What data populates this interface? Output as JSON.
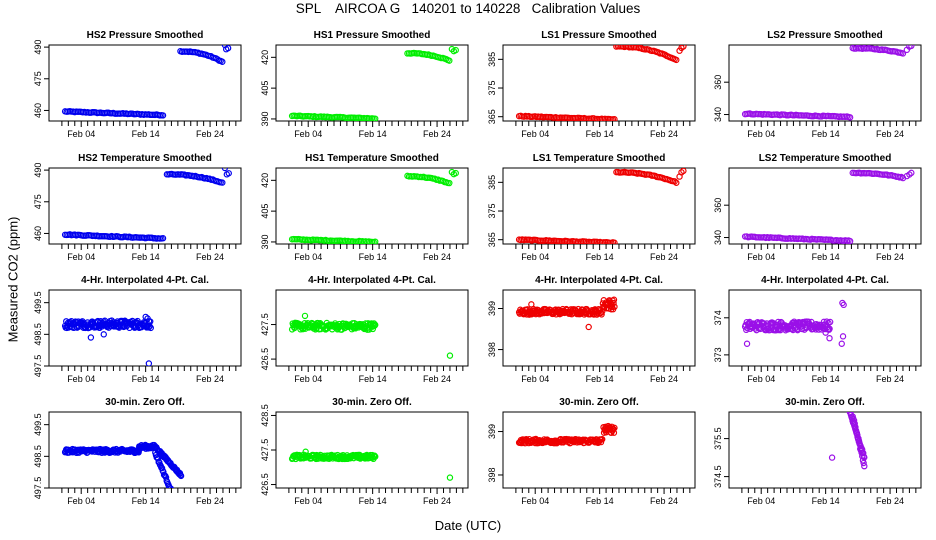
{
  "figure": {
    "title": "SPL    AIRCOA G   140201 to 140228   Calibration Values",
    "ylabel": "Measured CO2 (ppm)",
    "xlabel": "Date (UTC)"
  },
  "chart_data": [
    {
      "type": "scatter",
      "title": "HS2 Pressure Smoothed",
      "color": "#0000ee",
      "xlim": [
        -2,
        27.8
      ],
      "ylim": [
        455,
        491
      ],
      "yticks": [
        460,
        475,
        490
      ],
      "xtick_labels": [
        "Feb 04",
        "Feb 14",
        "Feb 24"
      ],
      "xticks": [
        3,
        13,
        23
      ],
      "segments": [
        {
          "x0": 0.5,
          "x1": 15.7,
          "y0": 459.5,
          "y1": 457.8,
          "curve": 0
        },
        {
          "x0": 18.4,
          "x1": 24.9,
          "y0": 488,
          "y1": 483,
          "curve": 1
        }
      ],
      "extra": [
        [
          25.3,
          491
        ],
        [
          25.5,
          489
        ],
        [
          25.8,
          489.5
        ]
      ]
    },
    {
      "type": "scatter",
      "title": "HS1 Pressure Smoothed",
      "color": "#00ee00",
      "xlim": [
        -2,
        27.8
      ],
      "ylim": [
        389,
        426
      ],
      "yticks": [
        390,
        405,
        420
      ],
      "xtick_labels": [
        "Feb 04",
        "Feb 14",
        "Feb 24"
      ],
      "xticks": [
        3,
        13,
        23
      ],
      "segments": [
        {
          "x0": 0.5,
          "x1": 13.4,
          "y0": 391.5,
          "y1": 390.2,
          "curve": 0
        },
        {
          "x0": 18.4,
          "x1": 24.9,
          "y0": 422,
          "y1": 418.5,
          "curve": 1
        }
      ],
      "extra": [
        [
          25.3,
          424
        ],
        [
          25.6,
          423
        ],
        [
          25.9,
          423.5
        ]
      ]
    },
    {
      "type": "scatter",
      "title": "LS1 Pressure Smoothed",
      "color": "#ee0000",
      "xlim": [
        -2,
        27.8
      ],
      "ylim": [
        363.5,
        390
      ],
      "yticks": [
        365,
        375,
        385
      ],
      "xtick_labels": [
        "Feb 04",
        "Feb 14",
        "Feb 24"
      ],
      "xticks": [
        3,
        13,
        23
      ],
      "segments": [
        {
          "x0": 0.5,
          "x1": 15.3,
          "y0": 365.2,
          "y1": 364.0,
          "curve": 0
        },
        {
          "x0": 15.6,
          "x1": 24.9,
          "y0": 389.5,
          "y1": 384.8,
          "curve": 1
        }
      ],
      "extra": [
        [
          25.4,
          388
        ],
        [
          25.7,
          389
        ],
        [
          26.0,
          389.5
        ]
      ]
    },
    {
      "type": "scatter",
      "title": "LS2 Pressure Smoothed",
      "color": "#9a10e8",
      "xlim": [
        -2,
        27.8
      ],
      "ylim": [
        336,
        383
      ],
      "yticks": [
        340,
        360
      ],
      "xtick_labels": [
        "Feb 04",
        "Feb 14",
        "Feb 24"
      ],
      "xticks": [
        3,
        13,
        23
      ],
      "segments": [
        {
          "x0": 0.5,
          "x1": 16.8,
          "y0": 340.5,
          "y1": 338.5,
          "curve": 0
        },
        {
          "x0": 17.2,
          "x1": 25.0,
          "y0": 381,
          "y1": 378,
          "curve": 1
        }
      ],
      "extra": [
        [
          25.6,
          380
        ],
        [
          26.0,
          382
        ],
        [
          26.3,
          382.5
        ]
      ]
    },
    {
      "type": "scatter",
      "title": "HS2 Temperature Smoothed",
      "color": "#0000ee",
      "xlim": [
        -2,
        27.8
      ],
      "ylim": [
        455,
        491
      ],
      "yticks": [
        460,
        475,
        490
      ],
      "xtick_labels": [
        "Feb 04",
        "Feb 14",
        "Feb 24"
      ],
      "xticks": [
        3,
        13,
        23
      ],
      "segments": [
        {
          "x0": 0.5,
          "x1": 15.7,
          "y0": 459.5,
          "y1": 457.6,
          "curve": 0
        },
        {
          "x0": 16.3,
          "x1": 24.9,
          "y0": 488,
          "y1": 484,
          "curve": 1
        }
      ],
      "extra": [
        [
          25.3,
          491
        ],
        [
          25.6,
          488
        ],
        [
          25.9,
          488.5
        ]
      ]
    },
    {
      "type": "scatter",
      "title": "HS1 Temperature Smoothed",
      "color": "#00ee00",
      "xlim": [
        -2,
        27.8
      ],
      "ylim": [
        389,
        426
      ],
      "yticks": [
        390,
        405,
        420
      ],
      "xtick_labels": [
        "Feb 04",
        "Feb 14",
        "Feb 24"
      ],
      "xticks": [
        3,
        13,
        23
      ],
      "segments": [
        {
          "x0": 0.5,
          "x1": 13.4,
          "y0": 391.3,
          "y1": 390.0,
          "curve": 0
        },
        {
          "x0": 18.4,
          "x1": 24.9,
          "y0": 422,
          "y1": 418.5,
          "curve": 1
        }
      ],
      "extra": [
        [
          25.3,
          424
        ],
        [
          25.6,
          423
        ],
        [
          25.9,
          423.5
        ]
      ]
    },
    {
      "type": "scatter",
      "title": "LS1 Temperature Smoothed",
      "color": "#ee0000",
      "xlim": [
        -2,
        27.8
      ],
      "ylim": [
        363.5,
        390
      ],
      "yticks": [
        365,
        375,
        385
      ],
      "xtick_labels": [
        "Feb 04",
        "Feb 14",
        "Feb 24"
      ],
      "xticks": [
        3,
        13,
        23
      ],
      "segments": [
        {
          "x0": 0.5,
          "x1": 15.3,
          "y0": 365.0,
          "y1": 363.9,
          "curve": 0
        },
        {
          "x0": 15.6,
          "x1": 24.9,
          "y0": 388.5,
          "y1": 385.0,
          "curve": 1
        }
      ],
      "extra": [
        [
          25.4,
          387
        ],
        [
          25.7,
          388.5
        ],
        [
          26.0,
          389
        ]
      ]
    },
    {
      "type": "scatter",
      "title": "LS2 Temperature Smoothed",
      "color": "#9a10e8",
      "xlim": [
        -2,
        27.8
      ],
      "ylim": [
        336,
        383
      ],
      "yticks": [
        340,
        360
      ],
      "xtick_labels": [
        "Feb 04",
        "Feb 14",
        "Feb 24"
      ],
      "xticks": [
        3,
        13,
        23
      ],
      "segments": [
        {
          "x0": 0.5,
          "x1": 16.8,
          "y0": 340.5,
          "y1": 338.0,
          "curve": 0
        },
        {
          "x0": 17.2,
          "x1": 25.0,
          "y0": 380,
          "y1": 377,
          "curve": 1
        }
      ],
      "extra": [
        [
          25.6,
          378
        ],
        [
          26.0,
          379
        ],
        [
          26.3,
          380
        ]
      ]
    },
    {
      "type": "scatter",
      "title": "4-Hr. Interpolated 4-Pt. Cal.",
      "color": "#0000ee",
      "xlim": [
        -2,
        27.8
      ],
      "ylim": [
        497.5,
        499.9
      ],
      "yticks": [
        497.5,
        498.5,
        499.5
      ],
      "xtick_labels": [
        "Feb 04",
        "Feb 14",
        "Feb 24"
      ],
      "xticks": [
        3,
        13,
        23
      ],
      "noise_segments": [
        {
          "x0": 0.5,
          "x1": 13.8,
          "y": 498.82,
          "amp": 0.12,
          "n": 150
        }
      ],
      "extra": [
        [
          13.5,
          497.58
        ],
        [
          13.0,
          499.05
        ],
        [
          13.3,
          499.0
        ],
        [
          4.5,
          498.4
        ],
        [
          6.5,
          498.5
        ]
      ]
    },
    {
      "type": "scatter",
      "title": "4-Hr. Interpolated 4-Pt. Cal.",
      "color": "#00ee00",
      "xlim": [
        -2,
        27.8
      ],
      "ylim": [
        426.3,
        428.5
      ],
      "yticks": [
        426.5,
        427.5
      ],
      "xtick_labels": [
        "Feb 04",
        "Feb 14",
        "Feb 24"
      ],
      "xticks": [
        3,
        13,
        23
      ],
      "noise_segments": [
        {
          "x0": 0.5,
          "x1": 13.4,
          "y": 427.45,
          "amp": 0.1,
          "n": 140
        }
      ],
      "extra": [
        [
          25.0,
          426.6
        ],
        [
          2.5,
          427.75
        ]
      ]
    },
    {
      "type": "scatter",
      "title": "4-Hr. Interpolated 4-Pt. Cal.",
      "color": "#ee0000",
      "xlim": [
        -2,
        27.8
      ],
      "ylim": [
        397.6,
        399.45
      ],
      "yticks": [
        398.0,
        399.0
      ],
      "xtick_labels": [
        "Feb 04",
        "Feb 14",
        "Feb 24"
      ],
      "xticks": [
        3,
        13,
        23
      ],
      "noise_segments": [
        {
          "x0": 0.5,
          "x1": 13.4,
          "y": 398.92,
          "amp": 0.07,
          "n": 140
        },
        {
          "x0": 13.5,
          "x1": 15.3,
          "y": 399.1,
          "amp": 0.12,
          "n": 26
        }
      ],
      "extra": [
        [
          2.4,
          399.1
        ],
        [
          11.3,
          398.55
        ]
      ]
    },
    {
      "type": "scatter",
      "title": "4-Hr. Interpolated 4-Pt. Cal.",
      "color": "#9a10e8",
      "xlim": [
        -2,
        27.8
      ],
      "ylim": [
        372.7,
        374.75
      ],
      "yticks": [
        373.0,
        374.0
      ],
      "xtick_labels": [
        "Feb 04",
        "Feb 14",
        "Feb 24"
      ],
      "xticks": [
        3,
        13,
        23
      ],
      "noise_segments": [
        {
          "x0": 0.5,
          "x1": 13.7,
          "y": 373.78,
          "amp": 0.12,
          "n": 150
        }
      ],
      "extra": [
        [
          0.8,
          373.3
        ],
        [
          15.6,
          374.4
        ],
        [
          15.8,
          374.35
        ],
        [
          15.5,
          373.3
        ],
        [
          15.7,
          373.5
        ],
        [
          13.6,
          373.45
        ],
        [
          13.0,
          373.6
        ]
      ]
    },
    {
      "type": "scatter",
      "title": "30-min. Zero Off.",
      "color": "#0000ee",
      "xlim": [
        -2,
        27.8
      ],
      "ylim": [
        497.5,
        499.9
      ],
      "yticks": [
        497.5,
        498.5,
        499.5
      ],
      "xtick_labels": [
        "Feb 04",
        "Feb 14",
        "Feb 24"
      ],
      "xticks": [
        3,
        13,
        23
      ],
      "noise_segments": [
        {
          "x0": 0.5,
          "x1": 12.0,
          "y": 498.67,
          "amp": 0.06,
          "n": 130
        },
        {
          "x0": 12.0,
          "x1": 14.5,
          "y": 498.8,
          "amp": 0.06,
          "n": 30
        }
      ],
      "trend_segments": [
        {
          "x0": 14.5,
          "x1": 18.5,
          "y0": 498.8,
          "y1": 497.9,
          "n": 45
        },
        {
          "x0": 14.5,
          "x1": 17.0,
          "y0": 498.6,
          "y1": 497.4,
          "n": 25
        }
      ]
    },
    {
      "type": "scatter",
      "title": "30-min. Zero Off.",
      "color": "#00ee00",
      "xlim": [
        -2,
        27.8
      ],
      "ylim": [
        426.4,
        428.6
      ],
      "yticks": [
        426.5,
        427.5,
        428.5
      ],
      "xtick_labels": [
        "Feb 04",
        "Feb 14",
        "Feb 24"
      ],
      "xticks": [
        3,
        13,
        23
      ],
      "noise_segments": [
        {
          "x0": 0.5,
          "x1": 13.4,
          "y": 427.3,
          "amp": 0.06,
          "n": 140
        }
      ],
      "extra": [
        [
          25.0,
          426.7
        ],
        [
          2.6,
          427.45
        ]
      ]
    },
    {
      "type": "scatter",
      "title": "30-min. Zero Off.",
      "color": "#ee0000",
      "xlim": [
        -2,
        27.8
      ],
      "ylim": [
        397.7,
        399.45
      ],
      "yticks": [
        398.0,
        399.0
      ],
      "xtick_labels": [
        "Feb 04",
        "Feb 14",
        "Feb 24"
      ],
      "xticks": [
        3,
        13,
        23
      ],
      "noise_segments": [
        {
          "x0": 0.5,
          "x1": 13.4,
          "y": 398.78,
          "amp": 0.05,
          "n": 140
        },
        {
          "x0": 13.6,
          "x1": 15.3,
          "y": 399.05,
          "amp": 0.08,
          "n": 22
        }
      ]
    },
    {
      "type": "scatter",
      "title": "30-min. Zero Off.",
      "color": "#9a10e8",
      "xlim": [
        -2,
        27.8
      ],
      "ylim": [
        374.2,
        376.2
      ],
      "yticks": [
        374.5,
        375.5
      ],
      "xtick_labels": [
        "Feb 04",
        "Feb 14",
        "Feb 24"
      ],
      "xticks": [
        3,
        13,
        23
      ],
      "trend_segments": [
        {
          "x0": 16.6,
          "x1": 19.0,
          "y0": 376.3,
          "y1": 375.0,
          "n": 30
        },
        {
          "x0": 17.2,
          "x1": 19.0,
          "y0": 376.1,
          "y1": 374.8,
          "n": 18
        }
      ],
      "extra": [
        [
          14.0,
          375.0
        ]
      ]
    }
  ]
}
